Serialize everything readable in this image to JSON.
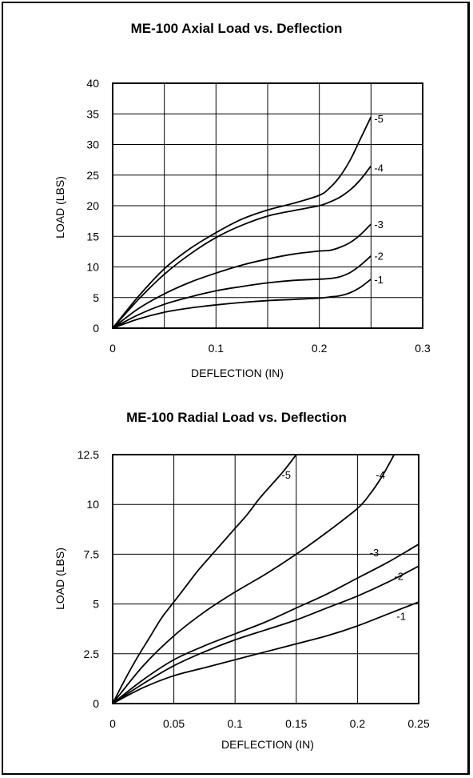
{
  "chart_data": [
    {
      "type": "line",
      "title": "ME-100 Axial Load vs. Deflection",
      "xlabel": "DEFLECTION (IN)",
      "ylabel": "LOAD (LBS)",
      "xlim": [
        0,
        0.3
      ],
      "ylim": [
        0,
        40
      ],
      "xticks": [
        "0",
        "0.1",
        "0.2",
        "0.3"
      ],
      "yticks": [
        "0",
        "5",
        "10",
        "15",
        "20",
        "25",
        "30",
        "35",
        "40"
      ],
      "xtick_values": [
        0,
        0.1,
        0.2,
        0.3
      ],
      "ytick_values": [
        0,
        5,
        10,
        15,
        20,
        25,
        30,
        35,
        40
      ],
      "xgrid": [
        0.05,
        0.1,
        0.15,
        0.2,
        0.25
      ],
      "ygrid": [
        5,
        10,
        15,
        20,
        25,
        30,
        35
      ],
      "grid": true,
      "series": [
        {
          "name": "-5",
          "x": [
            0,
            0.025,
            0.05,
            0.075,
            0.1,
            0.125,
            0.15,
            0.175,
            0.2,
            0.21,
            0.22,
            0.23,
            0.24,
            0.25
          ],
          "y": [
            0,
            5.2,
            9.7,
            13.0,
            15.6,
            17.8,
            19.3,
            20.4,
            21.7,
            22.9,
            24.8,
            27.5,
            31.0,
            34.5
          ]
        },
        {
          "name": "-4",
          "x": [
            0,
            0.025,
            0.05,
            0.075,
            0.1,
            0.125,
            0.15,
            0.175,
            0.2,
            0.21,
            0.22,
            0.23,
            0.24,
            0.25
          ],
          "y": [
            0,
            4.7,
            8.8,
            12.1,
            14.8,
            16.8,
            18.3,
            19.2,
            20.0,
            20.6,
            21.4,
            22.6,
            24.3,
            26.5
          ]
        },
        {
          "name": "-3",
          "x": [
            0,
            0.025,
            0.05,
            0.075,
            0.1,
            0.125,
            0.15,
            0.175,
            0.2,
            0.21,
            0.22,
            0.23,
            0.24,
            0.25
          ],
          "y": [
            0,
            3.2,
            5.6,
            7.5,
            9.0,
            10.3,
            11.3,
            12.1,
            12.6,
            12.7,
            13.2,
            14.0,
            15.3,
            17.0
          ]
        },
        {
          "name": "-2",
          "x": [
            0,
            0.025,
            0.05,
            0.075,
            0.1,
            0.125,
            0.15,
            0.175,
            0.2,
            0.21,
            0.22,
            0.23,
            0.24,
            0.25
          ],
          "y": [
            0,
            2.2,
            3.9,
            5.1,
            6.1,
            6.8,
            7.4,
            7.8,
            8.0,
            8.1,
            8.4,
            9.1,
            10.3,
            11.8
          ]
        },
        {
          "name": "-1",
          "x": [
            0,
            0.025,
            0.05,
            0.075,
            0.1,
            0.125,
            0.15,
            0.175,
            0.2,
            0.21,
            0.22,
            0.23,
            0.24,
            0.25
          ],
          "y": [
            0,
            1.5,
            2.6,
            3.3,
            3.8,
            4.2,
            4.5,
            4.7,
            4.9,
            5.1,
            5.3,
            5.8,
            6.7,
            8.0
          ]
        }
      ]
    },
    {
      "type": "line",
      "title": "ME-100 Radial Load vs. Deflection",
      "xlabel": "DEFLECTION (IN)",
      "ylabel": "LOAD (LBS)",
      "xlim": [
        0,
        0.25
      ],
      "ylim": [
        0,
        12.5
      ],
      "xticks": [
        "0",
        "0.05",
        "0.1",
        "0.15",
        "0.2",
        "0.25"
      ],
      "yticks": [
        "0",
        "2.5",
        "5",
        "7.5",
        "10",
        "12.5"
      ],
      "xtick_values": [
        0,
        0.05,
        0.1,
        0.15,
        0.2,
        0.25
      ],
      "ytick_values": [
        0,
        2.5,
        5,
        7.5,
        10,
        12.5
      ],
      "xgrid": [
        0.05,
        0.1,
        0.15,
        0.2
      ],
      "ygrid": [
        2.5,
        5,
        7.5,
        10
      ],
      "grid": true,
      "series": [
        {
          "name": "-5",
          "x": [
            0,
            0.01,
            0.02,
            0.03,
            0.04,
            0.05,
            0.06,
            0.07,
            0.08,
            0.09,
            0.1,
            0.11,
            0.12,
            0.13,
            0.14,
            0.15
          ],
          "y": [
            0,
            1.2,
            2.3,
            3.3,
            4.3,
            5.1,
            5.9,
            6.7,
            7.4,
            8.1,
            8.8,
            9.5,
            10.3,
            11.0,
            11.7,
            12.5
          ]
        },
        {
          "name": "-4",
          "x": [
            0,
            0.025,
            0.05,
            0.075,
            0.1,
            0.125,
            0.15,
            0.175,
            0.2,
            0.21,
            0.22,
            0.23
          ],
          "y": [
            0,
            1.9,
            3.4,
            4.6,
            5.6,
            6.5,
            7.5,
            8.6,
            9.8,
            10.5,
            11.4,
            12.5
          ]
        },
        {
          "name": "-3",
          "x": [
            0,
            0.025,
            0.05,
            0.075,
            0.1,
            0.125,
            0.15,
            0.175,
            0.2,
            0.225,
            0.25
          ],
          "y": [
            0,
            1.2,
            2.2,
            2.9,
            3.5,
            4.1,
            4.8,
            5.5,
            6.3,
            7.1,
            8.0
          ]
        },
        {
          "name": "-2",
          "x": [
            0,
            0.025,
            0.05,
            0.075,
            0.1,
            0.125,
            0.15,
            0.175,
            0.2,
            0.225,
            0.25
          ],
          "y": [
            0,
            1.0,
            1.9,
            2.6,
            3.2,
            3.7,
            4.2,
            4.8,
            5.4,
            6.1,
            6.9
          ]
        },
        {
          "name": "-1",
          "x": [
            0,
            0.025,
            0.05,
            0.075,
            0.1,
            0.125,
            0.15,
            0.175,
            0.2,
            0.225,
            0.25
          ],
          "y": [
            0,
            0.8,
            1.4,
            1.8,
            2.2,
            2.6,
            3.0,
            3.4,
            3.9,
            4.5,
            5.1
          ]
        }
      ]
    }
  ]
}
